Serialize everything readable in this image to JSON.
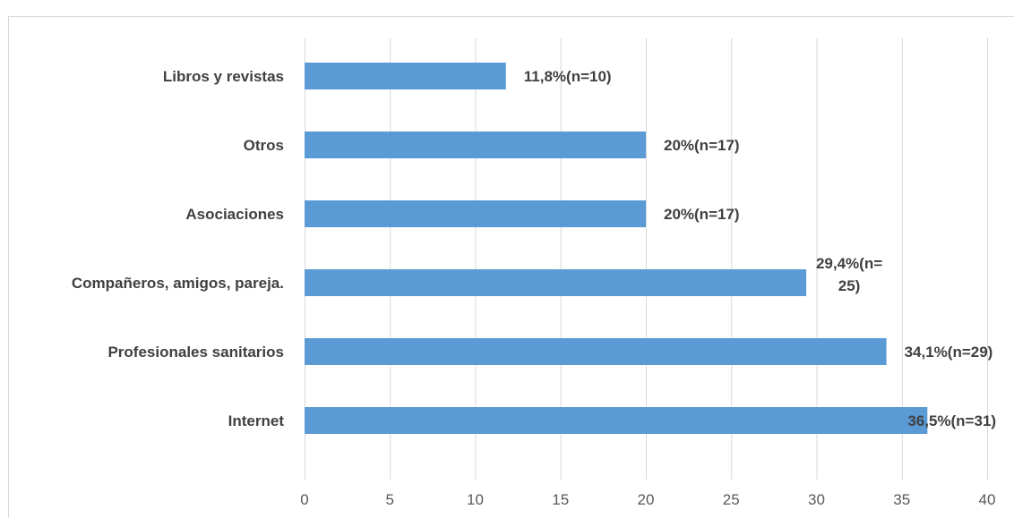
{
  "chart_data": {
    "type": "bar",
    "orientation": "horizontal",
    "categories": [
      "Libros y revistas",
      "Otros",
      "Asociaciones",
      "Compañeros, amigos, pareja.",
      "Profesionales sanitarios",
      "Internet"
    ],
    "values": [
      11.8,
      20,
      20,
      29.4,
      34.1,
      36.5
    ],
    "data_labels": [
      [
        "11,8%(n=10)"
      ],
      [
        "20%(n=17)"
      ],
      [
        "20%(n=17)"
      ],
      [
        "29,4%(n=",
        "25)"
      ],
      [
        "34,1%(n=29)"
      ],
      [
        "36,5%(n=31)"
      ]
    ],
    "xlim": [
      0,
      40
    ],
    "x_ticks": [
      0,
      5,
      10,
      15,
      20,
      25,
      30,
      35,
      40
    ],
    "grid": true,
    "legend": "none",
    "bar_color": "#5b9bd5",
    "title": "",
    "xlabel": "",
    "ylabel": ""
  }
}
